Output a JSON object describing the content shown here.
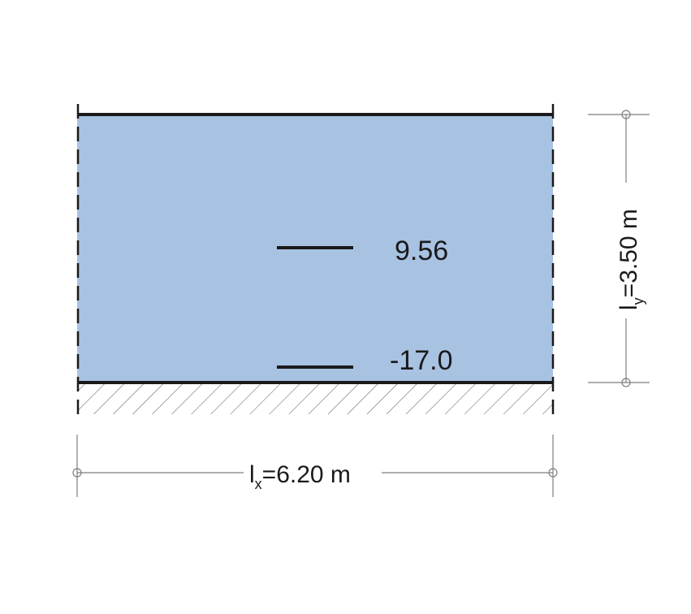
{
  "colors": {
    "slab_fill": "#a8c2e2",
    "edge": "#1a1a1a",
    "dimension": "#7f7f7f"
  },
  "values": {
    "upper": "9.56",
    "lower": "-17.0"
  },
  "dimensions": {
    "x": {
      "symbol": "l",
      "subscript": "x",
      "value": "=6.20 m"
    },
    "y": {
      "symbol": "l",
      "subscript": "y",
      "value": "=3.50 m"
    }
  }
}
